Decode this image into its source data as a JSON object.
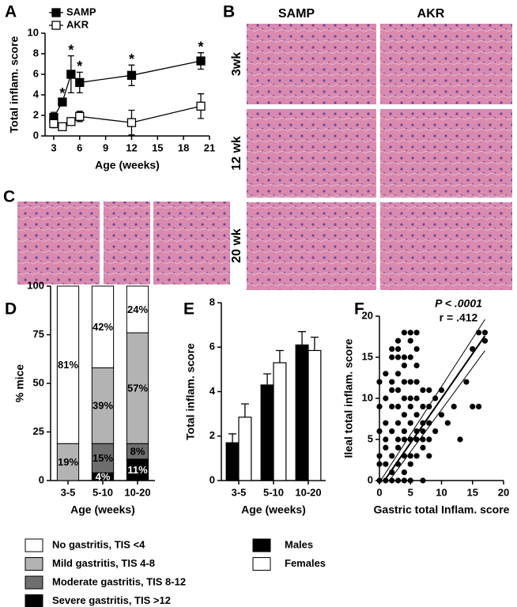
{
  "panels": [
    "A",
    "B",
    "C",
    "D",
    "E",
    "F"
  ],
  "histology": {
    "columns": [
      "SAMP",
      "AKR"
    ],
    "rows": [
      "3wk",
      "12 wk",
      "20 wk"
    ]
  },
  "chart_data": [
    {
      "type": "line",
      "x_label": "Age (weeks)",
      "y_label": "Total inflam. score",
      "xlim": [
        2,
        21
      ],
      "xticks": [
        3,
        6,
        9,
        12,
        15,
        18,
        21
      ],
      "ylim": [
        0,
        10
      ],
      "yticks": [
        0,
        2,
        4,
        6,
        8,
        10
      ],
      "legend": "upper left",
      "series": [
        {
          "name": "SAMP",
          "color": "#000000",
          "marker": "filled",
          "x": [
            3,
            4,
            5,
            6,
            12,
            20
          ],
          "values": [
            1.8,
            3.3,
            6.0,
            5.2,
            5.9,
            7.3
          ],
          "errors": [
            0.5,
            0.3,
            1.8,
            1.0,
            1.0,
            0.8
          ],
          "marker_labels": [
            null,
            "*",
            "*",
            "*",
            "*",
            "*"
          ]
        },
        {
          "name": "AKR",
          "color": "#000000",
          "marker": "open",
          "x": [
            3,
            4,
            5,
            6,
            12,
            20
          ],
          "values": [
            1.2,
            0.9,
            1.4,
            1.9,
            1.3,
            2.9
          ],
          "errors": [
            0.4,
            0.3,
            0.3,
            0.5,
            1.2,
            1.2
          ]
        }
      ]
    },
    {
      "type": "stacked_bar",
      "x_label": "Age (weeks)",
      "y_label": "% mice",
      "categories": [
        "3-5",
        "5-10",
        "10-20"
      ],
      "ylim": [
        0,
        100
      ],
      "yticks": [
        0,
        25,
        50,
        75,
        100
      ],
      "series": [
        {
          "name": "No gastritis, TIS <4",
          "color": "#ffffff",
          "values": [
            81,
            42,
            24
          ],
          "value_labels": [
            "81%",
            "42%",
            "24%"
          ]
        },
        {
          "name": "Mild gastritis, TIS 4-8",
          "color": "#b3b3b3",
          "values": [
            19,
            39,
            57
          ],
          "value_labels": [
            "19%",
            "39%",
            "57%"
          ]
        },
        {
          "name": "Moderate gastritis, TIS 8-12",
          "color": "#6e6e6e",
          "values": [
            0,
            15,
            8
          ],
          "value_labels": [
            null,
            "15%",
            "8%"
          ]
        },
        {
          "name": "Severe gastritis, TIS >12",
          "color": "#000000",
          "values": [
            0,
            4,
            11
          ],
          "value_labels": [
            null,
            "4%",
            "11%"
          ]
        }
      ]
    },
    {
      "type": "bar",
      "x_label": "Age (weeks)",
      "y_label": "Total inflam. score",
      "categories": [
        "3-5",
        "5-10",
        "10-20"
      ],
      "ylim": [
        0,
        8
      ],
      "yticks": [
        0,
        2,
        4,
        6,
        8
      ],
      "series": [
        {
          "name": "Males",
          "color": "#000000",
          "values": [
            1.7,
            4.3,
            6.1
          ],
          "errors": [
            0.4,
            0.5,
            0.6
          ]
        },
        {
          "name": "Females",
          "color": "#ffffff",
          "values": [
            2.85,
            5.3,
            5.85
          ],
          "errors": [
            0.6,
            0.55,
            0.6
          ]
        }
      ]
    },
    {
      "type": "scatter",
      "x_label": "Gastric total Inflam. score",
      "y_label": "Ileal total inflam. score",
      "xlim": [
        0,
        20
      ],
      "xticks": [
        0,
        5,
        10,
        15,
        20
      ],
      "ylim": [
        0,
        20
      ],
      "yticks": [
        0,
        5,
        10,
        15,
        20
      ],
      "color": "#000000",
      "annotations": [
        "P < .0001",
        "r = .412"
      ],
      "x": [
        0,
        0,
        0,
        0,
        0,
        0,
        1,
        1,
        1,
        1,
        1,
        1,
        1,
        2,
        2,
        2,
        2,
        2,
        2,
        2,
        2,
        3,
        3,
        3,
        3,
        3,
        3,
        3,
        3,
        3,
        3,
        4,
        4,
        4,
        4,
        4,
        4,
        4,
        4,
        4,
        4,
        5,
        5,
        5,
        5,
        5,
        5,
        5,
        5,
        5,
        5,
        6,
        6,
        6,
        6,
        6,
        6,
        6,
        6,
        7,
        7,
        7,
        7,
        7,
        7,
        7,
        8,
        8,
        8,
        8,
        8,
        9,
        9,
        10,
        10,
        11,
        12,
        13,
        14,
        15,
        15,
        16,
        16,
        17,
        17,
        3,
        4,
        5,
        2,
        6
      ],
      "values": [
        0,
        3,
        6,
        9,
        12,
        2,
        0,
        2,
        4,
        7,
        10,
        13,
        5,
        0,
        1,
        3,
        6,
        9,
        12,
        15,
        11,
        0,
        2,
        4,
        5,
        7,
        9,
        11,
        13,
        15,
        17,
        1,
        3,
        5,
        6,
        8,
        10,
        12,
        14,
        15,
        0,
        2,
        3,
        5,
        7,
        9,
        10,
        12,
        15,
        18,
        0,
        3,
        5,
        6,
        8,
        10,
        12,
        14,
        16,
        4,
        5,
        7,
        9,
        11,
        6,
        0,
        5,
        7,
        9,
        11,
        3,
        6,
        10,
        8,
        11,
        7,
        9,
        5,
        12,
        9,
        16,
        9,
        18,
        17,
        18,
        16,
        18,
        17,
        16,
        18
      ],
      "fit": {
        "x": [
          0.8,
          17
        ],
        "y": [
          0,
          17.6
        ]
      },
      "ci_upper": {
        "x": [
          0.2,
          17
        ],
        "y": [
          0,
          19.6
        ]
      },
      "ci_lower": {
        "x": [
          1.6,
          17
        ],
        "y": [
          0,
          15.8
        ]
      }
    }
  ]
}
